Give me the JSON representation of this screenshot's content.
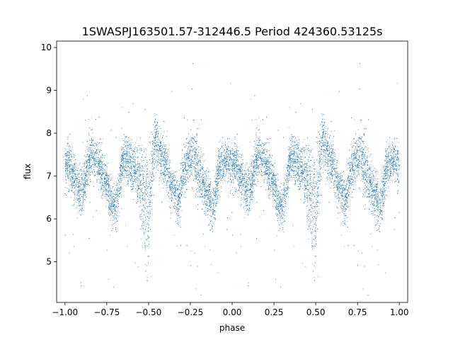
{
  "chart_data": {
    "type": "scatter",
    "title": "1SWASPJ163501.57-312446.5 Period 424360.53125s",
    "xlabel": "phase",
    "ylabel": "flux",
    "xlim": [
      -1.05,
      1.05
    ],
    "ylim": [
      4.05,
      10.15
    ],
    "xticks": [
      -1.0,
      -0.75,
      -0.5,
      -0.25,
      0.0,
      0.25,
      0.5,
      0.75,
      1.0
    ],
    "xtick_labels": [
      "−1.00",
      "−0.75",
      "−0.50",
      "−0.25",
      "0.00",
      "0.25",
      "0.50",
      "0.75",
      "1.00"
    ],
    "yticks": [
      5,
      6,
      7,
      8,
      9,
      10
    ],
    "ytick_labels": [
      "5",
      "6",
      "7",
      "8",
      "9",
      "10"
    ],
    "grid": false,
    "point_color": "#1f77b4",
    "phase_profile": {
      "phase": [
        0.0,
        0.02,
        0.04,
        0.06,
        0.08,
        0.1,
        0.12,
        0.14,
        0.16,
        0.18,
        0.2,
        0.22,
        0.24,
        0.26,
        0.28,
        0.3,
        0.32,
        0.34,
        0.36,
        0.38,
        0.4,
        0.42,
        0.44,
        0.46,
        0.48,
        0.5,
        0.52,
        0.54,
        0.56,
        0.58,
        0.6,
        0.62,
        0.64,
        0.66,
        0.68,
        0.7,
        0.72,
        0.74,
        0.76,
        0.78,
        0.8,
        0.82,
        0.84,
        0.86,
        0.88,
        0.9,
        0.92,
        0.94,
        0.96,
        0.98,
        1.0
      ],
      "flux": [
        7.2,
        7.3,
        7.1,
        6.9,
        6.7,
        6.6,
        6.9,
        7.3,
        7.5,
        7.4,
        7.3,
        7.1,
        6.9,
        6.6,
        6.3,
        6.2,
        6.6,
        7.3,
        7.4,
        7.3,
        7.2,
        7.1,
        7.0,
        6.7,
        6.4,
        6.2,
        7.2,
        7.8,
        7.6,
        7.4,
        7.3,
        7.0,
        6.8,
        6.6,
        6.4,
        6.9,
        7.2,
        7.4,
        7.5,
        7.3,
        7.1,
        6.9,
        6.7,
        6.5,
        6.2,
        6.6,
        7.1,
        7.3,
        7.4,
        7.3,
        7.2
      ],
      "spread": [
        0.35,
        0.35,
        0.35,
        0.35,
        0.35,
        0.35,
        0.35,
        0.35,
        0.35,
        0.35,
        0.35,
        0.35,
        0.35,
        0.35,
        0.35,
        0.35,
        0.35,
        0.35,
        0.35,
        0.35,
        0.35,
        0.35,
        0.5,
        0.7,
        0.9,
        0.9,
        0.45,
        0.5,
        0.45,
        0.35,
        0.35,
        0.35,
        0.35,
        0.35,
        0.35,
        0.35,
        0.35,
        0.35,
        0.4,
        0.5,
        0.55,
        0.5,
        0.4,
        0.35,
        0.35,
        0.35,
        0.35,
        0.35,
        0.35,
        0.35,
        0.35
      ]
    }
  }
}
